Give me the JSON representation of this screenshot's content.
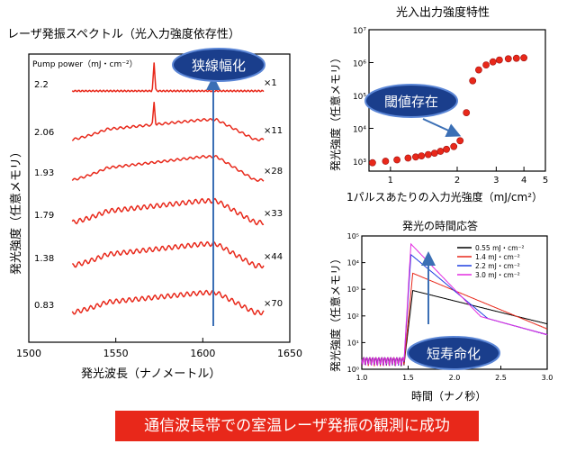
{
  "left_panel": {
    "title": "レーザ発振スペクトル（光入力強度依存性）",
    "legend_title": "Pump power（mJ・cm⁻²）",
    "ylabel": "発光強度（任意メモリ）",
    "xlabel": "発光波長（ナノメートル）",
    "callout": "狭線幅化"
  },
  "top_right_panel": {
    "title": "光入出力強度特性",
    "ylabel": "発光強度（任意メモリ）",
    "xlabel": "1パルスあたりの入力光強度（mJ/cm²）",
    "callout": "閾値存在"
  },
  "bottom_right_panel": {
    "title": "発光の時間応答",
    "ylabel": "発光強度（任意メモリ）",
    "xlabel": "時間（ナノ秒）",
    "callout": "短寿命化"
  },
  "banner": "通信波長帯での室温レーザ発振の観測に成功",
  "chart_data": [
    {
      "type": "line",
      "title": "レーザ発振スペクトル（光入力強度依存性）",
      "xlabel": "発光波長（ナノメートル）",
      "ylabel": "発光強度（任意メモリ）",
      "xlim": [
        1500,
        1650
      ],
      "x_ticks": [
        1500,
        1550,
        1600,
        1650
      ],
      "color": "#e8281a",
      "series": [
        {
          "pump": "2.2",
          "multiplier": "×1",
          "peak_nm": 1572
        },
        {
          "pump": "2.06",
          "multiplier": "×11",
          "peak_nm": 1572
        },
        {
          "pump": "1.93",
          "multiplier": "×28"
        },
        {
          "pump": "1.79",
          "multiplier": "×33"
        },
        {
          "pump": "1.38",
          "multiplier": "×44"
        },
        {
          "pump": "0.83",
          "multiplier": "×70"
        }
      ],
      "x_range_nm": [
        1525,
        1635
      ]
    },
    {
      "type": "scatter",
      "title": "光入出力強度特性",
      "xlabel": "1パルスあたりの入力光強度（mJ/cm²）",
      "ylabel": "発光強度（任意メモリ）",
      "xscale": "log",
      "yscale": "log",
      "xlim": [
        0.8,
        5
      ],
      "ylim": [
        500,
        10000000
      ],
      "x_tick_labels": [
        "1",
        "2",
        "3",
        "4",
        "5"
      ],
      "y_tick_labels": [
        "10³",
        "10⁴",
        "10⁵",
        "10⁶",
        "10⁷"
      ],
      "color": "#e8281a",
      "x": [
        0.83,
        0.95,
        1.07,
        1.2,
        1.3,
        1.38,
        1.48,
        1.58,
        1.68,
        1.79,
        1.93,
        2.06,
        2.2,
        2.35,
        2.5,
        2.7,
        2.9,
        3.1,
        3.4,
        3.7,
        4.0
      ],
      "y": [
        900,
        1000,
        1100,
        1250,
        1350,
        1450,
        1600,
        1750,
        2000,
        2300,
        2800,
        4200,
        30000,
        280000,
        600000,
        850000,
        1050000,
        1200000,
        1300000,
        1350000,
        1400000
      ]
    },
    {
      "type": "line",
      "title": "発光の時間応答",
      "xlabel": "時間（ナノ秒）",
      "ylabel": "発光強度（任意メモリ）",
      "xlim": [
        1.0,
        3.0
      ],
      "ylim": [
        1,
        100000
      ],
      "yscale": "log",
      "x_tick_labels": [
        "1.0",
        "1.5",
        "2.0",
        "2.5",
        "3.0"
      ],
      "y_tick_labels": [
        "10⁰",
        "10¹",
        "10²",
        "10³",
        "10⁴",
        "10⁵"
      ],
      "onset_ns": 1.45,
      "series": [
        {
          "name": "0.55 mJ・cm⁻²",
          "color": "#000000",
          "peak": 900,
          "peak_t": 1.55,
          "tau": 0.5
        },
        {
          "name": "1.4 mJ・cm⁻²",
          "color": "#e8281a",
          "peak": 4000,
          "peak_t": 1.55,
          "tau": 0.3
        },
        {
          "name": "2.2 mJ・cm⁻²",
          "color": "#1f3fe0",
          "peak": 20000,
          "peak_t": 1.53,
          "tau": 0.15
        },
        {
          "name": "3.0 mJ・cm⁻²",
          "color": "#e22de0",
          "peak": 50000,
          "peak_t": 1.53,
          "tau": 0.12
        }
      ]
    }
  ]
}
